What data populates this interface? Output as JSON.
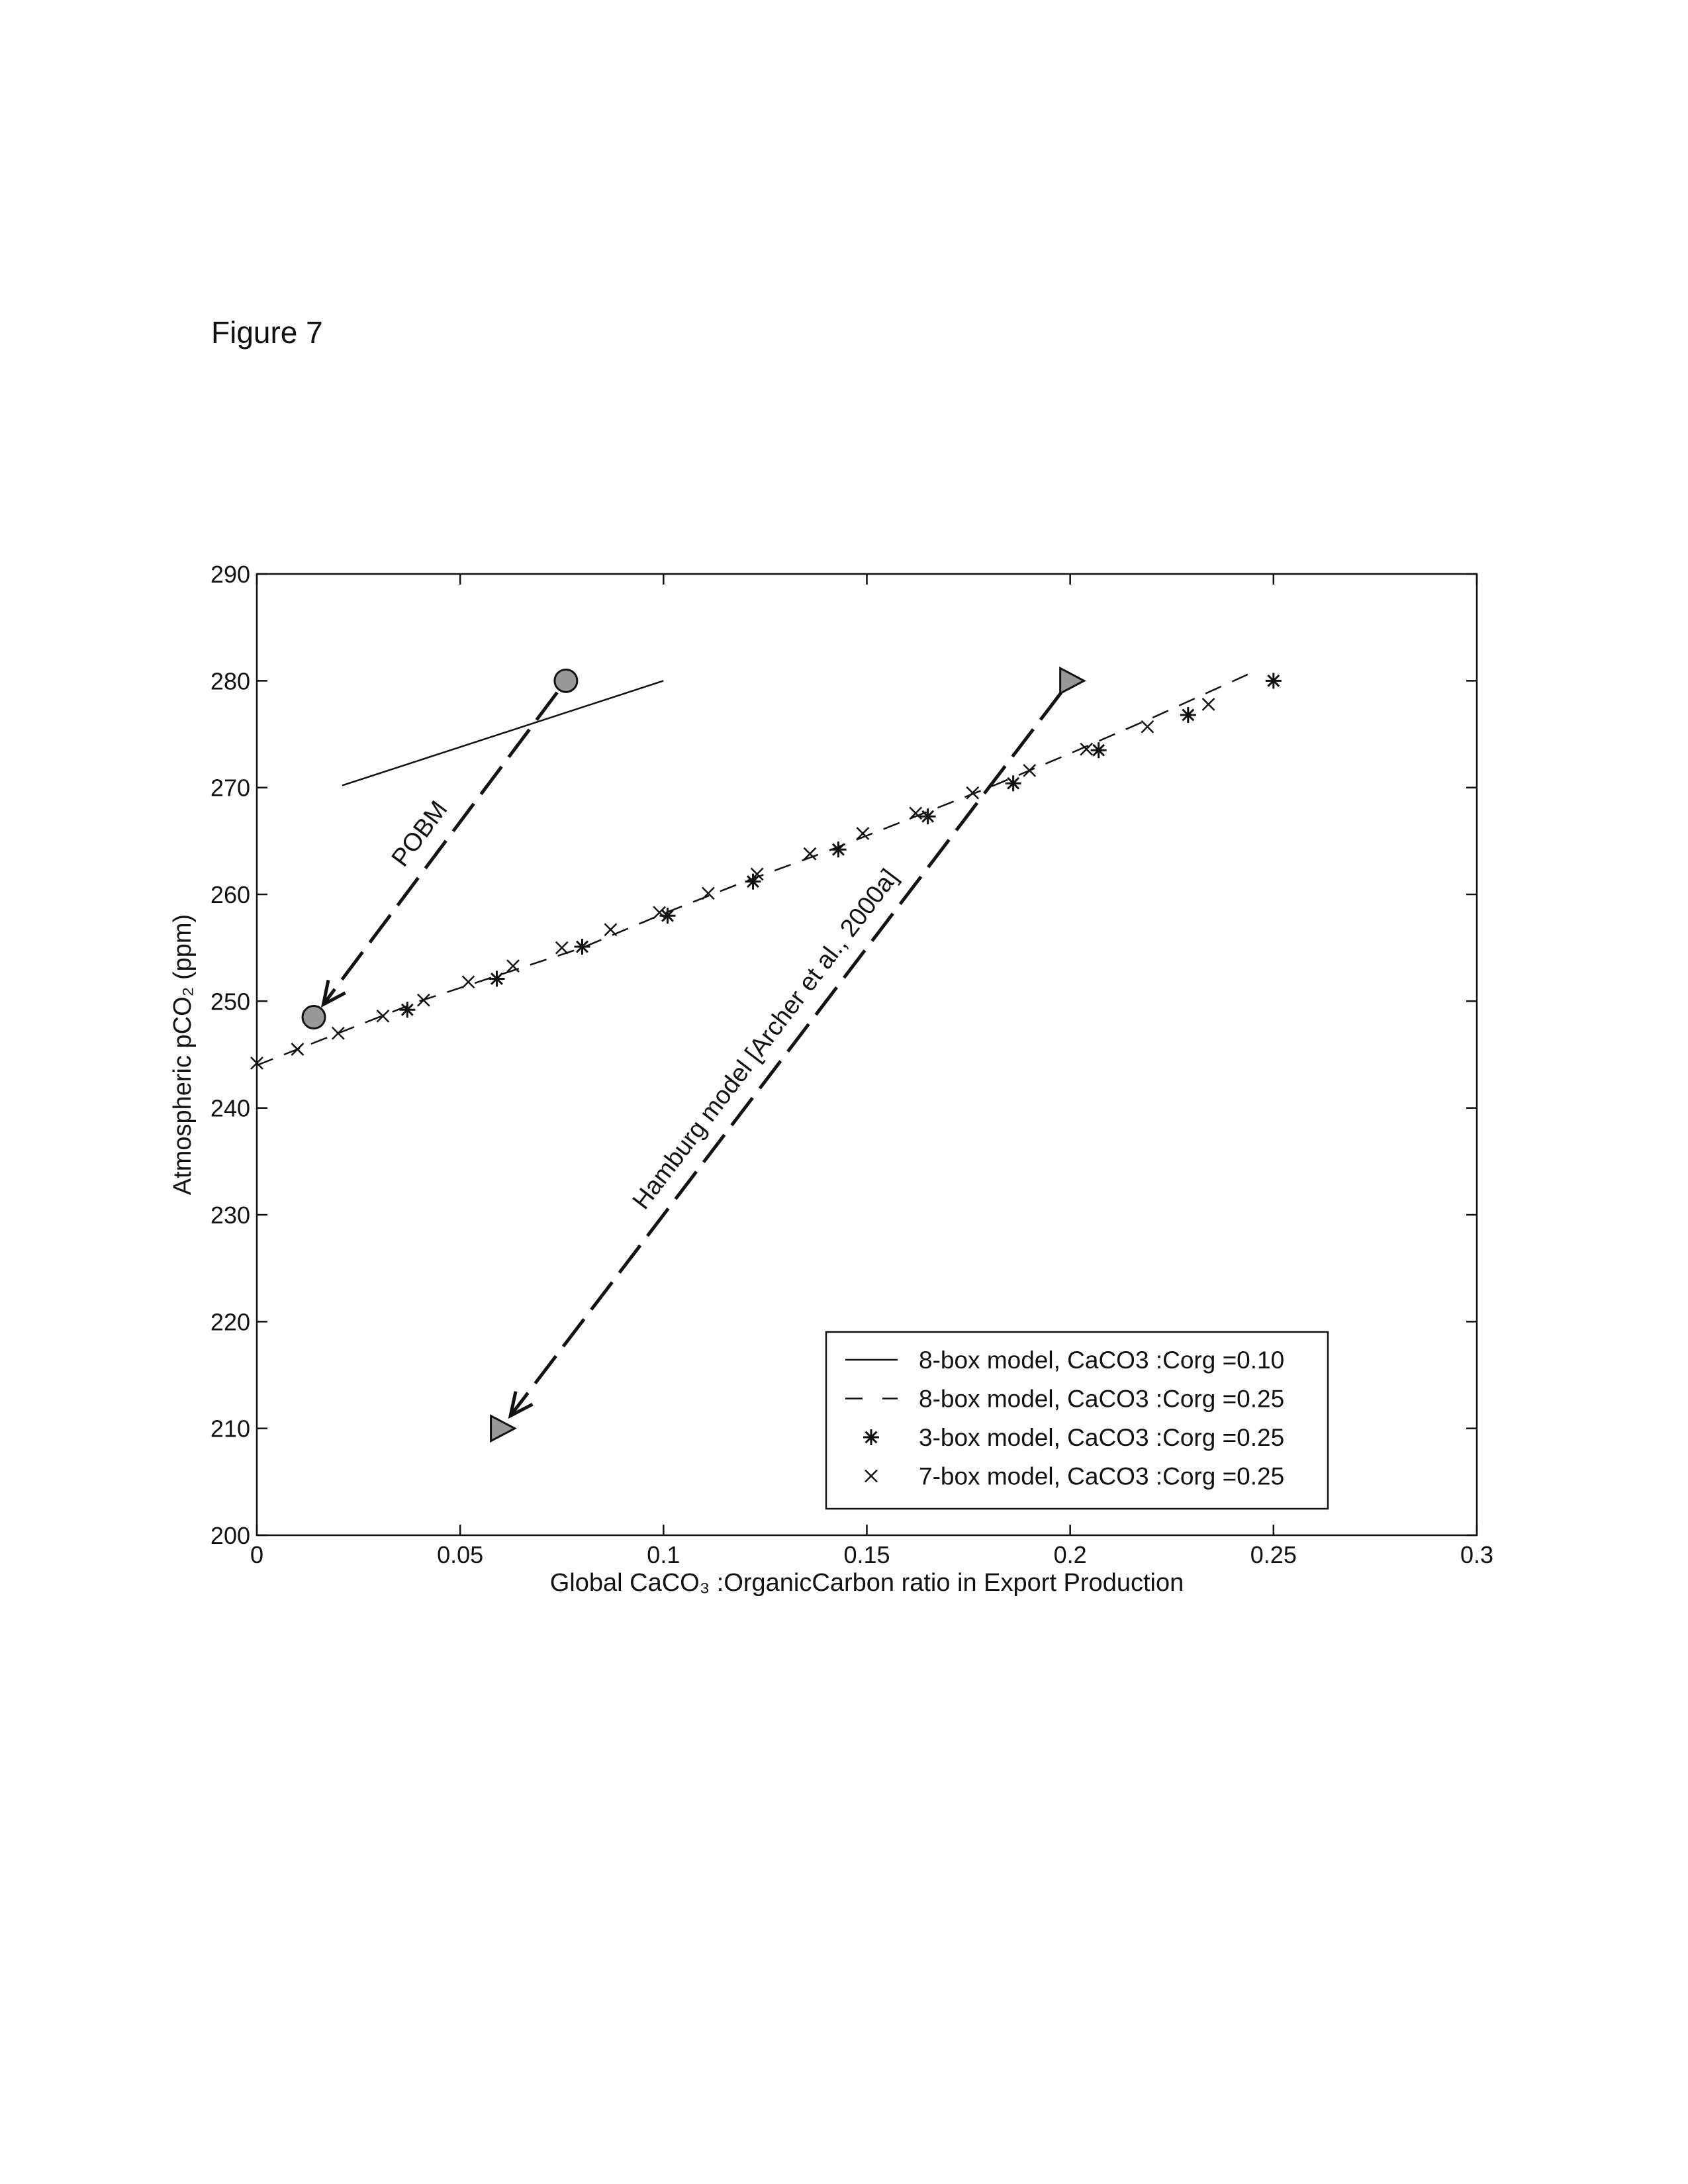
{
  "figure_label": "Figure 7",
  "chart_data": {
    "type": "line",
    "xlabel": "Global CaCO₃ :OrganicCarbon ratio in Export Production",
    "ylabel": "Atmospheric pCO₂ (ppm)",
    "xlim": [
      0,
      0.3
    ],
    "ylim": [
      200,
      290
    ],
    "xticks": [
      0,
      0.05,
      0.1,
      0.15,
      0.2,
      0.25,
      0.3
    ],
    "yticks": [
      200,
      210,
      220,
      230,
      240,
      250,
      260,
      270,
      280,
      290
    ],
    "legend": "lower right",
    "series": [
      {
        "name": "8-box model, CaCO3 :Corg =0.10",
        "color": "#111111",
        "style": "solid",
        "marker": "none",
        "x": [
          0.021,
          0.1
        ],
        "values": [
          270.2,
          280
        ]
      },
      {
        "name": "8-box model, CaCO3 :Corg =0.25",
        "color": "#111111",
        "style": "dashed",
        "marker": "none",
        "x": [
          0,
          0.02,
          0.04,
          0.06,
          0.08,
          0.1,
          0.12,
          0.14,
          0.16,
          0.18,
          0.2,
          0.22,
          0.246
        ],
        "values": [
          244,
          247,
          250,
          252.5,
          255,
          258.2,
          261.2,
          264,
          267,
          270,
          273.2,
          276.5,
          281
        ]
      },
      {
        "name": "3-box model, CaCO3 :Corg =0.25",
        "color": "#111111",
        "style": "none",
        "marker": "star",
        "x": [
          0.037,
          0.059,
          0.08,
          0.101,
          0.122,
          0.143,
          0.165,
          0.186,
          0.207,
          0.229,
          0.25
        ],
        "values": [
          249.2,
          252.1,
          255.1,
          258,
          261.2,
          264.2,
          267.3,
          270.4,
          273.5,
          276.8,
          280
        ]
      },
      {
        "name": "7-box model, CaCO3 :Corg =0.25",
        "color": "#111111",
        "style": "none",
        "marker": "x",
        "x": [
          0,
          0.01,
          0.02,
          0.031,
          0.041,
          0.052,
          0.063,
          0.075,
          0.087,
          0.099,
          0.111,
          0.123,
          0.136,
          0.149,
          0.162,
          0.176,
          0.19,
          0.204,
          0.219,
          0.234
        ],
        "values": [
          244.2,
          245.5,
          247,
          248.6,
          250.1,
          251.8,
          253.3,
          255,
          256.7,
          258.3,
          260.1,
          261.9,
          263.8,
          265.7,
          267.6,
          269.5,
          271.6,
          273.6,
          275.7,
          277.8
        ]
      }
    ],
    "annotations": [
      {
        "text": "POBM",
        "marker": "circle",
        "color": "#999999",
        "start": {
          "x": 0.076,
          "y": 280
        },
        "end": {
          "x": 0.014,
          "y": 248.5
        }
      },
      {
        "text": "Hamburg model [Archer et al., 2000a]",
        "marker": "triangle",
        "color": "#999999",
        "start": {
          "x": 0.2,
          "y": 280
        },
        "end": {
          "x": 0.06,
          "y": 210
        }
      }
    ]
  }
}
